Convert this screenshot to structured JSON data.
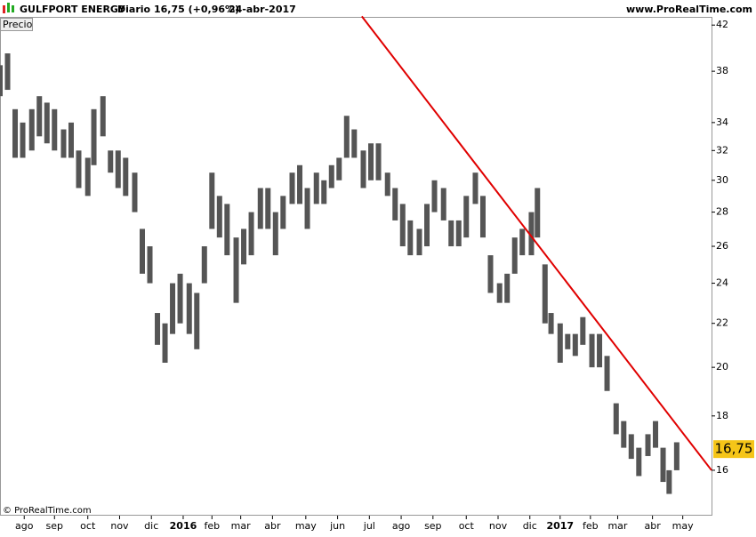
{
  "header": {
    "instrument": "GULFPORT ENERGY",
    "period": "Diario",
    "quote": "16,75 (+0,96%)",
    "date": "24-abr-2017",
    "site": "www.ProRealTime.com"
  },
  "chart_data": {
    "type": "ohlc",
    "panel_label": "Precio",
    "copyright": "© ProRealTime.com",
    "color": "#555555",
    "log_scale": true,
    "x": [
      0,
      5,
      10,
      15,
      21,
      26,
      31,
      36,
      42,
      47,
      52,
      58,
      62,
      68,
      73,
      78,
      83,
      89,
      94,
      99,
      104,
      109,
      114,
      119,
      125,
      130,
      135,
      140,
      145,
      150,
      156,
      161,
      166,
      172,
      177,
      182,
      187,
      193,
      198,
      203,
      209,
      214,
      219,
      224,
      229,
      234,
      240,
      245,
      250,
      256,
      261,
      266,
      271,
      277,
      282,
      287,
      293,
      298,
      303,
      308,
      314,
      319,
      324,
      330,
      335,
      340,
      345,
      351,
      355,
      360,
      364,
      370,
      375,
      380,
      385,
      391,
      396,
      401,
      407,
      412,
      417,
      422,
      428,
      433,
      438,
      442,
      447
    ],
    "high": [
      38.5,
      39.5,
      35,
      34,
      35,
      36,
      35.5,
      35,
      33.5,
      34,
      32,
      31.5,
      35,
      36,
      32,
      32,
      31.5,
      30.5,
      27,
      26,
      22.5,
      22,
      24,
      24.5,
      24,
      23.5,
      26,
      30.5,
      29,
      28.5,
      26.5,
      27,
      28,
      29.5,
      29.5,
      28,
      29,
      30.5,
      31,
      29.5,
      30.5,
      30,
      31,
      31.5,
      34.5,
      33.5,
      32,
      32.5,
      32.5,
      30.5,
      29.5,
      28.5,
      27.5,
      27,
      28.5,
      30,
      29.5,
      27.5,
      27.5,
      29,
      30.5,
      29,
      25.5,
      24,
      24.5,
      26.5,
      27,
      28,
      29.5,
      25,
      22.5,
      22,
      21.5,
      21.5,
      22.3,
      21.5,
      21.5,
      20.5,
      18.5,
      17.8,
      17.3,
      16.8,
      17.3,
      17.8,
      16.8,
      16,
      17
    ],
    "low": [
      36,
      36.5,
      31.5,
      31.5,
      32,
      33,
      32.5,
      32,
      31.5,
      31.5,
      29.5,
      29,
      31,
      33,
      30.5,
      29.5,
      29,
      28,
      24.5,
      24,
      21,
      20.2,
      21.5,
      22,
      21.5,
      20.8,
      24,
      27,
      26.5,
      25.5,
      23,
      25,
      25.5,
      27,
      27,
      25.5,
      27,
      28.5,
      28.5,
      27,
      28.5,
      28.5,
      29.5,
      30,
      31.5,
      31.5,
      29.5,
      30,
      30,
      29,
      27.5,
      26,
      25.5,
      25.5,
      26,
      28,
      27.5,
      26,
      26,
      26.5,
      28.5,
      26.5,
      23.5,
      23,
      23,
      24.5,
      25.5,
      25.5,
      26.5,
      22,
      21.5,
      20.2,
      20.8,
      20.5,
      21,
      20,
      20,
      19,
      17.3,
      16.8,
      16.4,
      15.8,
      16.5,
      16.8,
      15.6,
      15.2,
      16
    ],
    "last": {
      "value": 16.75,
      "label": "16,75"
    },
    "trendline": {
      "x": [
        239,
        470
      ],
      "values": [
        42.8,
        16.0
      ],
      "color": "#e00000"
    },
    "xlim": [
      0,
      470
    ],
    "ylim": [
      14.5,
      43
    ],
    "yticks": [
      16,
      18,
      20,
      22,
      24,
      26,
      28,
      30,
      32,
      34,
      38,
      42
    ],
    "xticks": [
      {
        "value": 16,
        "label": "ago"
      },
      {
        "value": 36,
        "label": "sep"
      },
      {
        "value": 58,
        "label": "oct"
      },
      {
        "value": 79,
        "label": "nov"
      },
      {
        "value": 100,
        "label": "dic"
      },
      {
        "value": 121,
        "label": "2016"
      },
      {
        "value": 140,
        "label": "feb"
      },
      {
        "value": 159,
        "label": "mar"
      },
      {
        "value": 180,
        "label": "abr"
      },
      {
        "value": 202,
        "label": "may"
      },
      {
        "value": 223,
        "label": "jun"
      },
      {
        "value": 244,
        "label": "jul"
      },
      {
        "value": 265,
        "label": "ago"
      },
      {
        "value": 286,
        "label": "sep"
      },
      {
        "value": 308,
        "label": "oct"
      },
      {
        "value": 329,
        "label": "nov"
      },
      {
        "value": 350,
        "label": "dic"
      },
      {
        "value": 370,
        "label": "2017"
      },
      {
        "value": 390,
        "label": "feb"
      },
      {
        "value": 408,
        "label": "mar"
      },
      {
        "value": 431,
        "label": "abr"
      },
      {
        "value": 451,
        "label": "may"
      }
    ]
  }
}
